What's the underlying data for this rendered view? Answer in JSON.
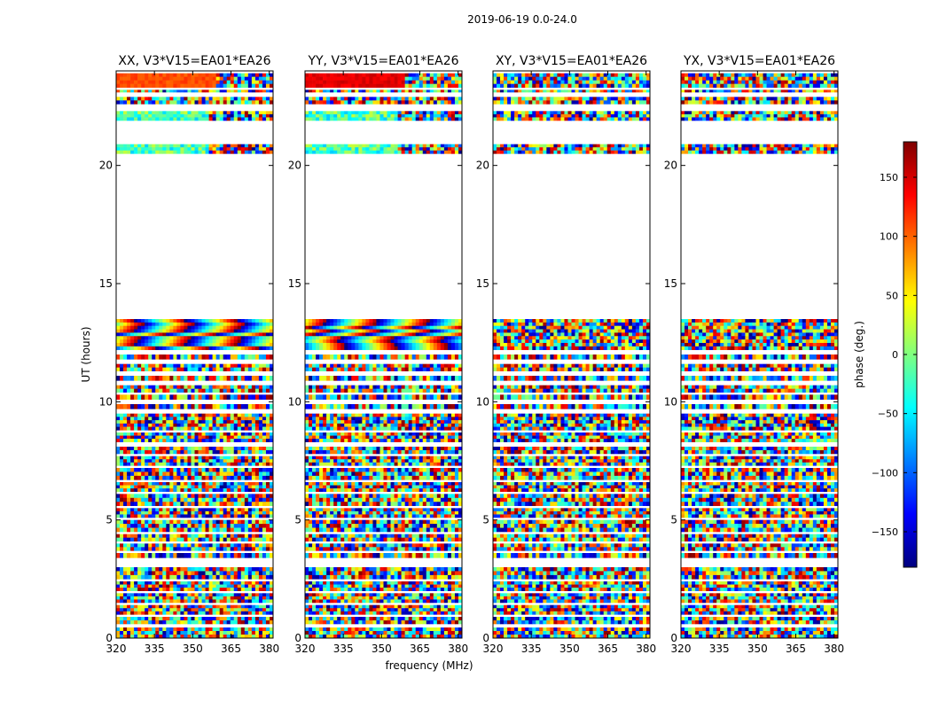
{
  "figure": {
    "title": "2019-06-19 0.0-24.0"
  },
  "chart_data": {
    "type": "heatmap",
    "title": "2019-06-19 0.0-24.0",
    "xlabel": "frequency (MHz)",
    "ylabel": "UT (hours)",
    "xlim": [
      320,
      381.5
    ],
    "ylim": [
      0,
      24
    ],
    "xticks": [
      "320",
      "335",
      "350",
      "365",
      "380"
    ],
    "yticks": [
      "0",
      "5",
      "10",
      "15",
      "20"
    ],
    "colorbar": {
      "label": "phase (deg.)",
      "range": [
        -180,
        180
      ],
      "ticks": [
        "150",
        "100",
        "50",
        "0",
        "−50",
        "−100",
        "−150"
      ],
      "colormap": "jet",
      "colors": [
        "#00007f",
        "#0000ff",
        "#007fff",
        "#00ffff",
        "#7fff7f",
        "#ffff00",
        "#ff7f00",
        "#ff0000",
        "#7f0000"
      ]
    },
    "panels": [
      {
        "name": "XX, V3*V15=EA01*EA26"
      },
      {
        "name": "YY, V3*V15=EA01*EA26"
      },
      {
        "name": "XY, V3*V15=EA01*EA26"
      },
      {
        "name": "YX, V3*V15=EA01*EA26"
      }
    ],
    "data_bands_ut": [
      [
        0.0,
        0.45
      ],
      [
        0.6,
        0.9
      ],
      [
        1.0,
        1.4
      ],
      [
        1.5,
        1.9
      ],
      [
        2.0,
        2.4
      ],
      [
        2.5,
        3.0
      ],
      [
        3.4,
        3.6
      ],
      [
        3.7,
        4.0
      ],
      [
        4.1,
        4.4
      ],
      [
        4.5,
        5.0
      ],
      [
        5.1,
        5.5
      ],
      [
        5.6,
        6.1
      ],
      [
        6.2,
        6.6
      ],
      [
        6.7,
        7.2
      ],
      [
        7.3,
        7.7
      ],
      [
        7.8,
        8.1
      ],
      [
        8.3,
        8.7
      ],
      [
        8.8,
        9.5
      ],
      [
        9.7,
        9.9
      ],
      [
        10.1,
        10.3
      ],
      [
        10.4,
        10.7
      ],
      [
        10.9,
        11.1
      ],
      [
        11.3,
        11.6
      ],
      [
        11.8,
        12.0
      ],
      [
        12.2,
        13.5
      ],
      [
        20.5,
        20.9
      ],
      [
        21.9,
        22.3
      ],
      [
        22.6,
        22.9
      ],
      [
        23.1,
        23.2
      ],
      [
        23.3,
        23.9
      ]
    ]
  }
}
